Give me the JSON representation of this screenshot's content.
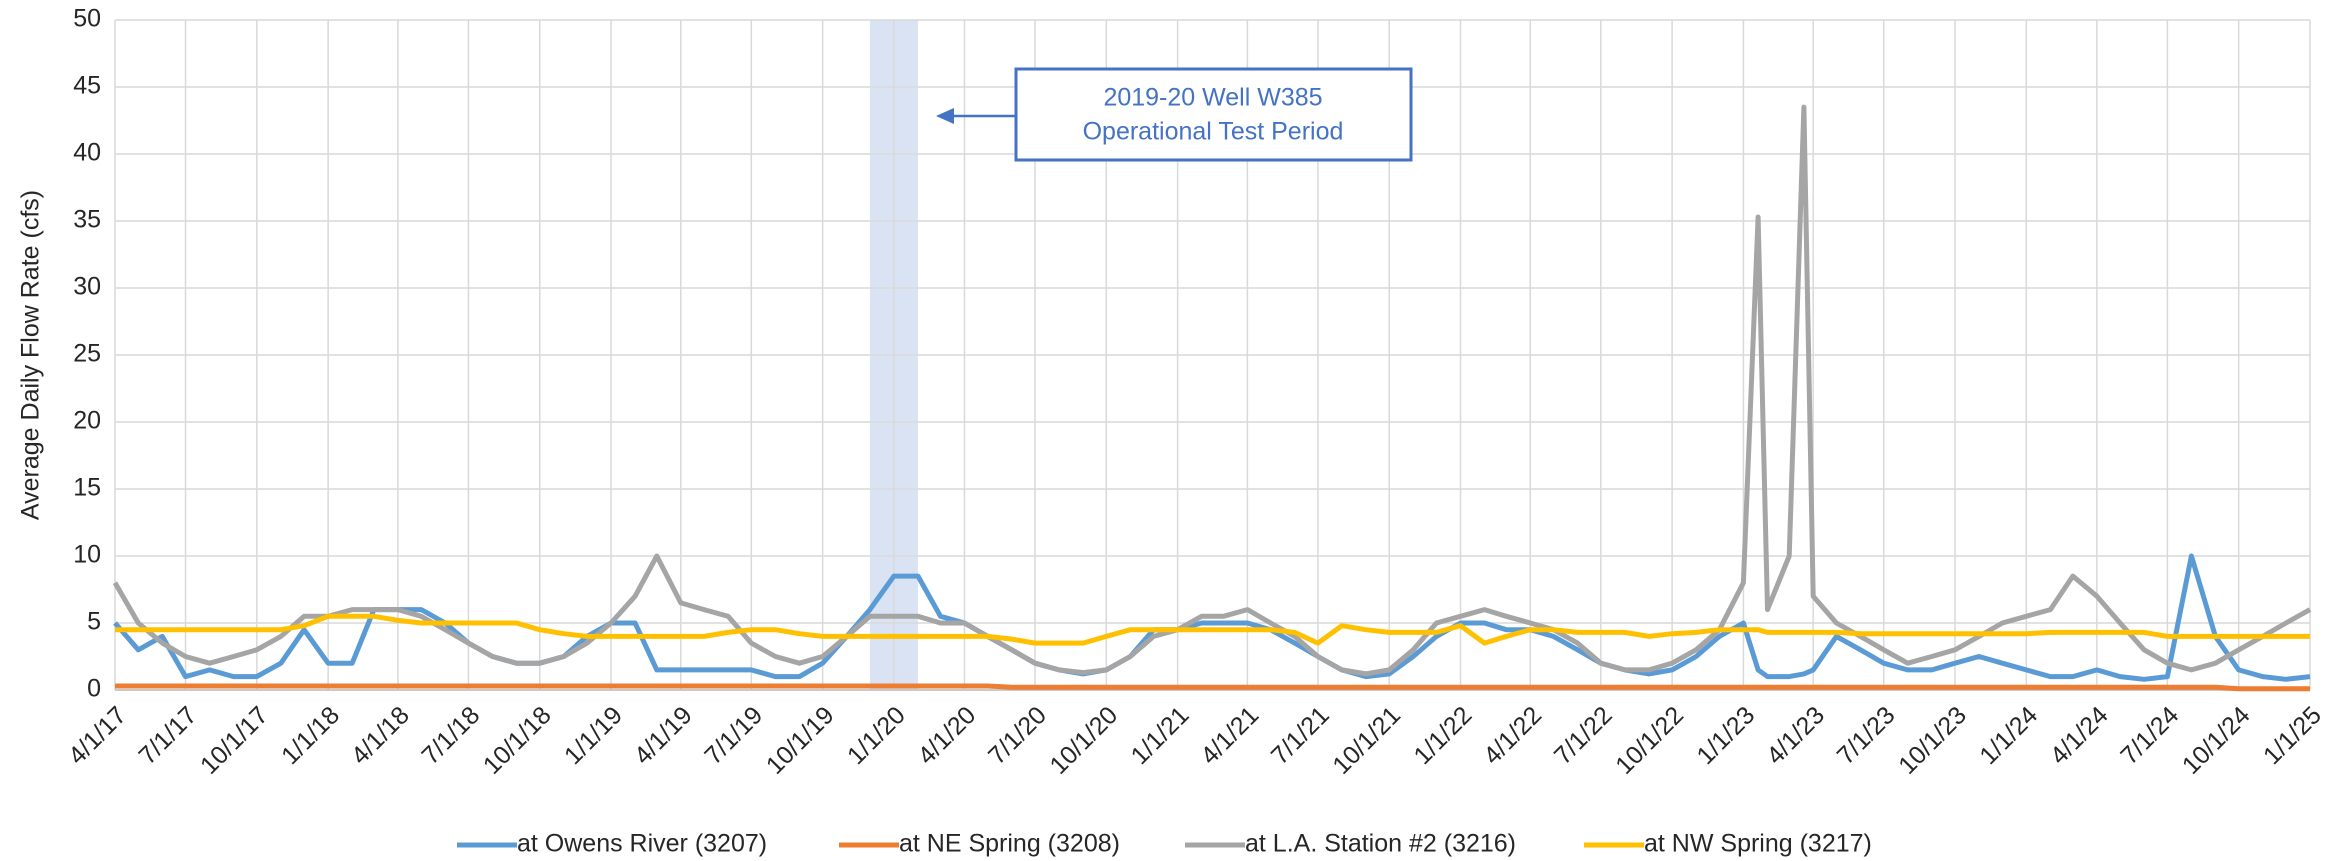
{
  "chart_data": {
    "type": "line",
    "ylabel": "Average Daily Flow Rate (cfs)",
    "annotation": [
      "2019-20 Well W385",
      "Operational Test Period"
    ],
    "shaded_period": [
      "12/1/19",
      "2/1/20"
    ],
    "xlim": [
      "4/1/17",
      "1/1/25"
    ],
    "xticks": [
      "4/1/17",
      "7/1/17",
      "10/1/17",
      "1/1/18",
      "4/1/18",
      "7/1/18",
      "10/1/18",
      "1/1/19",
      "4/1/19",
      "7/1/19",
      "10/1/19",
      "1/1/20",
      "4/1/20",
      "7/1/20",
      "10/1/20",
      "1/1/21",
      "4/1/21",
      "7/1/21",
      "10/1/21",
      "1/1/22",
      "4/1/22",
      "7/1/22",
      "10/1/22",
      "1/1/23",
      "4/1/23",
      "7/1/23",
      "10/1/23",
      "1/1/24",
      "4/1/24",
      "7/1/24",
      "10/1/24",
      "1/1/25"
    ],
    "ylim": [
      0,
      50
    ],
    "yticks": [
      0,
      5,
      10,
      15,
      20,
      25,
      30,
      35,
      40,
      45,
      50
    ],
    "grid": true,
    "legend": "bottom",
    "x": [
      "4/1/17",
      "5/1/17",
      "6/1/17",
      "7/1/17",
      "8/1/17",
      "9/1/17",
      "10/1/17",
      "11/1/17",
      "12/1/17",
      "1/1/18",
      "2/1/18",
      "3/1/18",
      "4/1/18",
      "5/1/18",
      "6/1/18",
      "7/1/18",
      "8/1/18",
      "9/1/18",
      "10/1/18",
      "11/1/18",
      "12/1/18",
      "1/1/19",
      "2/1/19",
      "3/1/19",
      "4/1/19",
      "5/1/19",
      "6/1/19",
      "7/1/19",
      "8/1/19",
      "9/1/19",
      "10/1/19",
      "11/1/19",
      "12/1/19",
      "1/1/20",
      "2/1/20",
      "3/1/20",
      "4/1/20",
      "5/1/20",
      "6/1/20",
      "7/1/20",
      "8/1/20",
      "9/1/20",
      "10/1/20",
      "11/1/20",
      "12/1/20",
      "1/1/21",
      "2/1/21",
      "3/1/21",
      "4/1/21",
      "5/1/21",
      "6/1/21",
      "7/1/21",
      "8/1/21",
      "9/1/21",
      "10/1/21",
      "11/1/21",
      "12/1/21",
      "1/1/22",
      "2/1/22",
      "3/1/22",
      "4/1/22",
      "5/1/22",
      "6/1/22",
      "7/1/22",
      "8/1/22",
      "9/1/22",
      "10/1/22",
      "11/1/22",
      "12/1/22",
      "1/1/23",
      "1/20/23",
      "2/1/23",
      "3/1/23",
      "3/20/23",
      "4/1/23",
      "5/1/23",
      "6/1/23",
      "7/1/23",
      "8/1/23",
      "9/1/23",
      "10/1/23",
      "11/1/23",
      "12/1/23",
      "1/1/24",
      "2/1/24",
      "3/1/24",
      "4/1/24",
      "5/1/24",
      "6/1/24",
      "7/1/24",
      "8/1/24",
      "9/1/24",
      "10/1/24",
      "11/1/24",
      "12/1/24",
      "1/1/25"
    ],
    "series": [
      {
        "name": "at Owens River (3207)",
        "color": "#5b9bd5",
        "values": [
          5,
          3,
          4,
          1,
          1.5,
          1,
          1,
          2,
          4.5,
          2,
          2,
          6,
          6,
          6,
          5,
          3.5,
          2.5,
          2,
          2,
          2.5,
          4,
          5,
          5,
          1.5,
          1.5,
          1.5,
          1.5,
          1.5,
          1,
          1,
          2,
          4,
          6,
          8.5,
          8.5,
          5.5,
          5,
          4,
          3,
          2,
          1.5,
          1.2,
          1.5,
          2.5,
          4.5,
          4.5,
          5,
          5,
          5,
          4.5,
          3.5,
          2.5,
          1.5,
          1,
          1.2,
          2.5,
          4,
          5,
          5,
          4.5,
          4.5,
          4,
          3,
          2,
          1.5,
          1.2,
          1.5,
          2.5,
          4,
          5,
          1.5,
          1,
          1,
          1.2,
          1.5,
          4,
          3,
          2,
          1.5,
          1.5,
          2,
          2.5,
          2,
          1.5,
          1,
          1,
          1.5,
          1,
          0.8,
          1,
          10,
          4,
          1.5,
          1,
          0.8,
          1
        ]
      },
      {
        "name": "at NE Spring (3208)",
        "color": "#ed7d31",
        "values": [
          0.3,
          0.3,
          0.3,
          0.3,
          0.3,
          0.3,
          0.3,
          0.3,
          0.3,
          0.3,
          0.3,
          0.3,
          0.3,
          0.3,
          0.3,
          0.3,
          0.3,
          0.3,
          0.3,
          0.3,
          0.3,
          0.3,
          0.3,
          0.3,
          0.3,
          0.3,
          0.3,
          0.3,
          0.3,
          0.3,
          0.3,
          0.3,
          0.3,
          0.3,
          0.3,
          0.3,
          0.3,
          0.3,
          0.2,
          0.2,
          0.2,
          0.2,
          0.2,
          0.2,
          0.2,
          0.2,
          0.2,
          0.2,
          0.2,
          0.2,
          0.2,
          0.2,
          0.2,
          0.2,
          0.2,
          0.2,
          0.2,
          0.2,
          0.2,
          0.2,
          0.2,
          0.2,
          0.2,
          0.2,
          0.2,
          0.2,
          0.2,
          0.2,
          0.2,
          0.2,
          0.2,
          0.2,
          0.2,
          0.2,
          0.2,
          0.2,
          0.2,
          0.2,
          0.2,
          0.2,
          0.2,
          0.2,
          0.2,
          0.2,
          0.2,
          0.2,
          0.2,
          0.2,
          0.2,
          0.2,
          0.2,
          0.2,
          0.1,
          0.1,
          0.1,
          0.1
        ]
      },
      {
        "name": "at L.A. Station #2 (3216)",
        "color": "#a5a5a5",
        "values": [
          8,
          5,
          3.5,
          2.5,
          2,
          2.5,
          3,
          4,
          5.5,
          5.5,
          6,
          6,
          6,
          5.5,
          4.5,
          3.5,
          2.5,
          2,
          2,
          2.5,
          3.5,
          5,
          7,
          10,
          6.5,
          6,
          5.5,
          3.5,
          2.5,
          2,
          2.5,
          4,
          5.5,
          5.5,
          5.5,
          5,
          5,
          4,
          3,
          2,
          1.5,
          1.3,
          1.5,
          2.5,
          4,
          4.5,
          5.5,
          5.5,
          6,
          5,
          4,
          2.5,
          1.5,
          1.2,
          1.5,
          3,
          5,
          5.5,
          6,
          5.5,
          5,
          4.5,
          3.5,
          2,
          1.5,
          1.5,
          2,
          3,
          4.5,
          8,
          35.3,
          6,
          10,
          43.5,
          7,
          5,
          4,
          3,
          2,
          2.5,
          3,
          4,
          5,
          5.5,
          6,
          8.5,
          7,
          5,
          3,
          2,
          1.5,
          2,
          3,
          4,
          5,
          6
        ]
      },
      {
        "name": "at NW Spring (3217)",
        "color": "#ffc000",
        "values": [
          4.5,
          4.5,
          4.5,
          4.5,
          4.5,
          4.5,
          4.5,
          4.5,
          4.8,
          5.5,
          5.5,
          5.5,
          5.2,
          5,
          5,
          5,
          5,
          5,
          4.5,
          4.2,
          4,
          4,
          4,
          4,
          4,
          4,
          4.3,
          4.5,
          4.5,
          4.2,
          4,
          4,
          4,
          4,
          4,
          4,
          4,
          4,
          3.8,
          3.5,
          3.5,
          3.5,
          4,
          4.5,
          4.5,
          4.5,
          4.5,
          4.5,
          4.5,
          4.5,
          4.3,
          3.5,
          4.8,
          4.5,
          4.3,
          4.3,
          4.3,
          4.8,
          3.5,
          4,
          4.5,
          4.5,
          4.3,
          4.3,
          4.3,
          4,
          4.2,
          4.3,
          4.5,
          4.5,
          4.5,
          4.3,
          4.3,
          4.3,
          4.3,
          4.3,
          4.2,
          4.2,
          4.2,
          4.2,
          4.2,
          4.2,
          4.2,
          4.2,
          4.3,
          4.3,
          4.3,
          4.3,
          4.3,
          4,
          4,
          4,
          4,
          4,
          4,
          4
        ]
      }
    ]
  }
}
